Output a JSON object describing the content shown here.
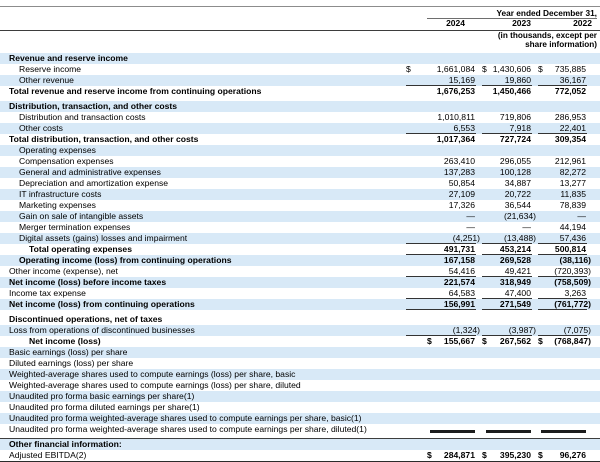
{
  "header": {
    "period_label": "Year ended December 31,",
    "years": [
      "2024",
      "2023",
      "2022"
    ],
    "units_note": [
      "(in thousands, except per",
      "share information)"
    ]
  },
  "colors": {
    "row_highlight": "#d8e9f7",
    "text": "#000000",
    "rule_lines": "#333333"
  },
  "table": {
    "rows": [
      {
        "label": "Revenue and reserve income",
        "indent": 0,
        "bold": true,
        "shade": "blue"
      },
      {
        "label": "Reserve income",
        "indent": 1,
        "shade": "white",
        "dollar": true,
        "values": [
          "1,661,084",
          "1,430,606",
          "735,885"
        ]
      },
      {
        "label": "Other revenue",
        "indent": 1,
        "shade": "blue",
        "values": [
          "15,169",
          "19,860",
          "36,167"
        ],
        "rule_below": true
      },
      {
        "label": "Total revenue and reserve income from continuing operations",
        "indent": 0,
        "bold": true,
        "shade": "white",
        "values": [
          "1,676,253",
          "1,450,466",
          "772,052"
        ]
      },
      {
        "type": "spacer"
      },
      {
        "label": "Distribution, transaction, and other costs",
        "indent": 0,
        "bold": true,
        "shade": "blue"
      },
      {
        "label": "Distribution and transaction costs",
        "indent": 1,
        "shade": "white",
        "values": [
          "1,010,811",
          "719,806",
          "286,953"
        ]
      },
      {
        "label": "Other costs",
        "indent": 1,
        "shade": "blue",
        "values": [
          "6,553",
          "7,918",
          "22,401"
        ],
        "rule_below": true
      },
      {
        "label": "Total distribution, transaction, and other costs",
        "indent": 0,
        "bold": true,
        "shade": "white",
        "values": [
          "1,017,364",
          "727,724",
          "309,354"
        ]
      },
      {
        "label": "Operating expenses",
        "indent": 1,
        "shade": "blue"
      },
      {
        "label": "Compensation expenses",
        "indent": 1,
        "shade": "white",
        "values": [
          "263,410",
          "296,055",
          "212,961"
        ]
      },
      {
        "label": "General and administrative expenses",
        "indent": 1,
        "shade": "blue",
        "values": [
          "137,283",
          "100,128",
          "82,272"
        ]
      },
      {
        "label": "Depreciation and amortization expense",
        "indent": 1,
        "shade": "white",
        "values": [
          "50,854",
          "34,887",
          "13,277"
        ]
      },
      {
        "label": "IT infrastructure costs",
        "indent": 1,
        "shade": "blue",
        "values": [
          "27,109",
          "20,722",
          "11,835"
        ]
      },
      {
        "label": "Marketing expenses",
        "indent": 1,
        "shade": "white",
        "values": [
          "17,326",
          "36,544",
          "78,839"
        ]
      },
      {
        "label": "Gain on sale of intangible assets",
        "indent": 1,
        "shade": "blue",
        "values": [
          "—",
          "(21,634)",
          "—"
        ]
      },
      {
        "label": "Merger termination expenses",
        "indent": 1,
        "shade": "white",
        "values": [
          "—",
          "—",
          "44,194"
        ]
      },
      {
        "label": "Digital assets (gains) losses and impairment",
        "indent": 1,
        "shade": "blue",
        "values": [
          "(4,251)",
          "(13,488)",
          "57,436"
        ],
        "rule_below": true
      },
      {
        "label": "Total operating expenses",
        "indent": 2,
        "bold": true,
        "shade": "white",
        "values": [
          "491,731",
          "453,214",
          "500,814"
        ],
        "rule_below": true
      },
      {
        "label": "Operating income (loss) from continuing operations",
        "indent": 1,
        "bold": true,
        "shade": "blue",
        "values": [
          "167,158",
          "269,528",
          "(38,116)"
        ]
      },
      {
        "label": "Other income (expense), net",
        "indent": 0,
        "shade": "white",
        "values": [
          "54,416",
          "49,421",
          "(720,393)"
        ],
        "rule_below": true
      },
      {
        "label": "Net income (loss) before income taxes",
        "indent": 0,
        "bold": true,
        "shade": "blue",
        "values": [
          "221,574",
          "318,949",
          "(758,509)"
        ]
      },
      {
        "label": "Income tax expense",
        "indent": 0,
        "shade": "white",
        "values": [
          "64,583",
          "47,400",
          "3,263"
        ],
        "rule_below": true
      },
      {
        "label": "Net income (loss) from continuing operations",
        "indent": 0,
        "bold": true,
        "shade": "blue",
        "values": [
          "156,991",
          "271,549",
          "(761,772)"
        ],
        "rule_below": true
      },
      {
        "type": "spacer"
      },
      {
        "label": "Discontinued operations, net of taxes",
        "indent": 0,
        "bold": true,
        "shade": "white"
      },
      {
        "label": "Loss from operations of discontinued businesses",
        "indent": 0,
        "shade": "blue",
        "values": [
          "(1,324)",
          "(3,987)",
          "(7,075)"
        ],
        "rule_below": true
      },
      {
        "label": "Net income (loss)",
        "indent": 2,
        "bold": true,
        "shade": "white",
        "dollar": true,
        "values": [
          "155,667",
          "267,562",
          "(768,847)"
        ]
      },
      {
        "label": "Basic earnings (loss) per share",
        "indent": 0,
        "shade": "blue"
      },
      {
        "label": "Diluted earnings (loss) per share",
        "indent": 0,
        "shade": "white"
      },
      {
        "label": "Weighted-average shares used to compute earnings (loss) per share, basic",
        "indent": 0,
        "shade": "blue"
      },
      {
        "label": "Weighted-average shares used to compute earnings (loss) per share, diluted",
        "indent": 0,
        "shade": "white"
      },
      {
        "label": "Unaudited pro forma basic earnings per share(1)",
        "indent": 0,
        "shade": "blue"
      },
      {
        "label": "Unaudited pro forma diluted earnings per share(1)",
        "indent": 0,
        "shade": "white"
      },
      {
        "label": "Unaudited pro forma weighted-average shares used to compute earnings per share, basic(1)",
        "indent": 0,
        "shade": "blue"
      },
      {
        "label": "Unaudited pro forma weighted-average shares used to compute earnings per share, diluted(1)",
        "indent": 0,
        "shade": "white",
        "bars": true
      },
      {
        "type": "spacer3"
      },
      {
        "type": "divider"
      },
      {
        "label": "Other financial information:",
        "indent": 0,
        "bold": true,
        "shade": "blue"
      },
      {
        "label": "Adjusted EBITDA(2)",
        "indent": 0,
        "shade": "white",
        "dollar": true,
        "bold_values": true,
        "values": [
          "284,871",
          "395,230",
          "96,276"
        ],
        "bottom_border": true
      }
    ]
  }
}
